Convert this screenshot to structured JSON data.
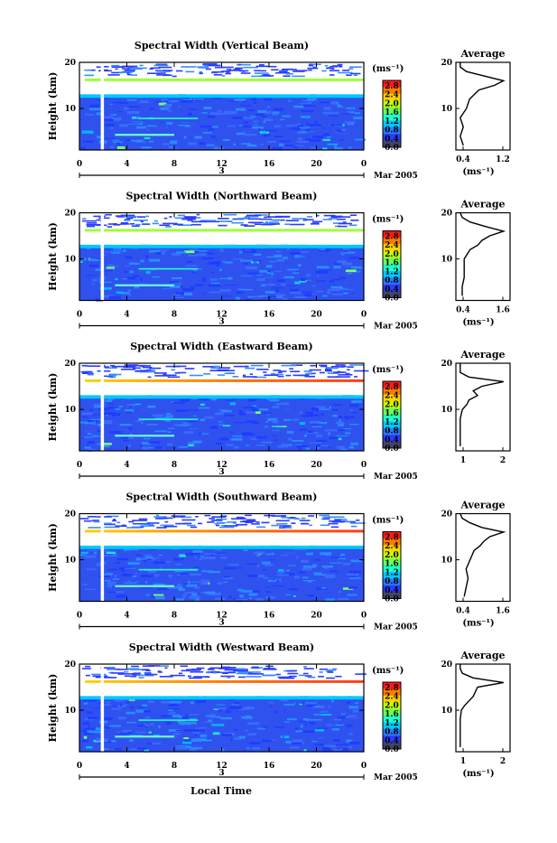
{
  "figure": {
    "x_axis_label": "Local Time",
    "date_label": "Mar 2005",
    "day_label": "3"
  },
  "colorbar": {
    "unit": "(ms⁻¹)",
    "ticks": [
      "2.8",
      "2.4",
      "2.0",
      "1.6",
      "1.2",
      "0.8",
      "0.4",
      "0.0"
    ],
    "colors": [
      "#ff1a1a",
      "#ff7a00",
      "#ffd400",
      "#c8ff00",
      "#6cff5a",
      "#1fffc8",
      "#00c8ff",
      "#2a7bff",
      "#2a3cff",
      "#444466"
    ]
  },
  "chart_data": [
    {
      "type": "heatmap",
      "title": "Spectral Width (Vertical Beam)",
      "ylabel": "Height (km)",
      "x_ticks": [
        "0",
        "4",
        "8",
        "12",
        "16",
        "20",
        "0"
      ],
      "xlim": [
        0,
        24
      ],
      "y_ticks": [
        "20",
        "10"
      ],
      "ylim": [
        1,
        20
      ],
      "z_range": [
        0.0,
        2.8
      ],
      "tropopause_km": 16.5,
      "profile": {
        "title": "Average",
        "xlabel": "(ms⁻¹)",
        "x_ticks": [
          "0.4",
          "1.2"
        ],
        "y_ticks": [
          "20",
          "10"
        ],
        "heights_km": [
          2,
          4,
          6,
          8,
          10,
          12,
          14,
          15,
          16,
          17,
          18,
          19,
          20
        ],
        "values": [
          0.65,
          0.6,
          0.65,
          0.6,
          0.7,
          0.75,
          0.9,
          1.15,
          1.3,
          1.0,
          0.7,
          0.6,
          0.6
        ]
      }
    },
    {
      "type": "heatmap",
      "title": "Spectral Width (Northward Beam)",
      "ylabel": "Height (km)",
      "x_ticks": [
        "0",
        "4",
        "8",
        "12",
        "16",
        "20",
        "0"
      ],
      "xlim": [
        0,
        24
      ],
      "y_ticks": [
        "20",
        "10"
      ],
      "ylim": [
        1,
        20
      ],
      "z_range": [
        0.0,
        2.8
      ],
      "tropopause_km": 16.5,
      "profile": {
        "title": "Average",
        "xlabel": "(ms⁻¹)",
        "x_ticks": [
          "0.4",
          "1.6"
        ],
        "y_ticks": [
          "20",
          "10"
        ],
        "heights_km": [
          2,
          4,
          6,
          8,
          10,
          12,
          13,
          14,
          15,
          16,
          17,
          18,
          19,
          20
        ],
        "values": [
          0.5,
          0.5,
          0.55,
          0.55,
          0.55,
          0.7,
          0.9,
          1.0,
          1.2,
          1.55,
          1.1,
          0.7,
          0.5,
          0.45
        ]
      }
    },
    {
      "type": "heatmap",
      "title": "Spectral Width (Eastward Beam)",
      "ylabel": "Height (km)",
      "x_ticks": [
        "0",
        "4",
        "8",
        "12",
        "16",
        "20",
        "0"
      ],
      "xlim": [
        0,
        24
      ],
      "y_ticks": [
        "20",
        "10"
      ],
      "ylim": [
        1,
        20
      ],
      "z_range": [
        0.0,
        2.8
      ],
      "tropopause_km": 16.5,
      "profile": {
        "title": "Average",
        "xlabel": "",
        "x_ticks": [
          "1",
          "2"
        ],
        "y_ticks": [
          "20",
          "10"
        ],
        "heights_km": [
          2,
          4,
          6,
          8,
          10,
          11,
          12,
          13,
          14,
          15,
          16,
          17,
          18,
          19,
          20
        ],
        "values": [
          0.6,
          0.6,
          0.6,
          0.6,
          0.7,
          0.9,
          1.0,
          1.4,
          1.2,
          1.6,
          2.6,
          1.0,
          0.6,
          0.6,
          0.6
        ]
      }
    },
    {
      "type": "heatmap",
      "title": "Spectral Width (Southward Beam)",
      "ylabel": "Height (km)",
      "x_ticks": [
        "0",
        "4",
        "8",
        "12",
        "16",
        "20",
        "0"
      ],
      "xlim": [
        0,
        24
      ],
      "y_ticks": [
        "20",
        "10"
      ],
      "ylim": [
        1,
        20
      ],
      "z_range": [
        0.0,
        2.8
      ],
      "tropopause_km": 16.5,
      "profile": {
        "title": "Average",
        "xlabel": "(ms⁻¹)",
        "x_ticks": [
          "0.4",
          "1.6"
        ],
        "y_ticks": [
          "20",
          "10"
        ],
        "heights_km": [
          2,
          4,
          6,
          8,
          10,
          12,
          13,
          14,
          15,
          16,
          17,
          18,
          19,
          20
        ],
        "values": [
          0.55,
          0.6,
          0.65,
          0.6,
          0.7,
          0.8,
          0.95,
          1.05,
          1.2,
          1.55,
          1.0,
          0.7,
          0.5,
          0.45
        ]
      }
    },
    {
      "type": "heatmap",
      "title": "Spectral Width (Westward Beam)",
      "ylabel": "Height (km)",
      "x_ticks": [
        "0",
        "4",
        "8",
        "12",
        "16",
        "20",
        "0"
      ],
      "xlim": [
        0,
        24
      ],
      "y_ticks": [
        "20",
        "10"
      ],
      "ylim": [
        1,
        20
      ],
      "z_range": [
        0.0,
        2.8
      ],
      "tropopause_km": 16.5,
      "profile": {
        "title": "Average",
        "xlabel": "(ms⁻¹)",
        "x_ticks": [
          "1",
          "2"
        ],
        "y_ticks": [
          "20",
          "10"
        ],
        "heights_km": [
          2,
          4,
          6,
          8,
          10,
          11,
          12,
          13,
          14,
          15,
          16,
          17,
          18,
          19,
          20
        ],
        "values": [
          0.6,
          0.6,
          0.6,
          0.6,
          0.65,
          0.8,
          1.0,
          1.2,
          1.3,
          1.4,
          2.6,
          1.2,
          0.7,
          0.6,
          0.6
        ]
      }
    }
  ]
}
